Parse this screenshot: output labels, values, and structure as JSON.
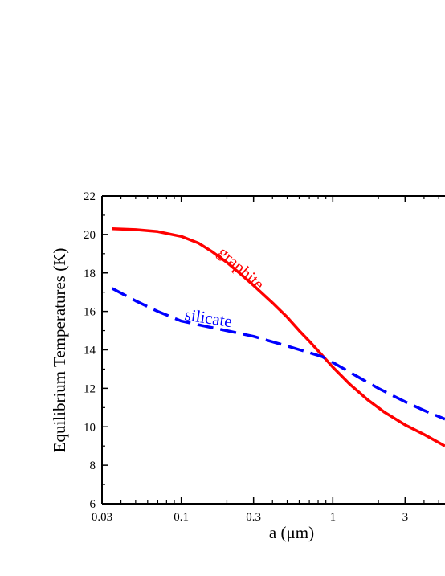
{
  "chart_data": {
    "type": "line",
    "xlabel": "a (μm)",
    "ylabel": "Equilibrium Temperatures (K)",
    "x_scale": "log",
    "xlim": [
      0.03,
      5.5
    ],
    "ylim": [
      6,
      22
    ],
    "x_ticks": [
      {
        "value": 0.03,
        "label": "0.03"
      },
      {
        "value": 0.1,
        "label": "0.1"
      },
      {
        "value": 0.3,
        "label": "0.3"
      },
      {
        "value": 1,
        "label": "1"
      },
      {
        "value": 3,
        "label": "3"
      }
    ],
    "y_ticks": [
      {
        "value": 6,
        "label": "6"
      },
      {
        "value": 8,
        "label": "8"
      },
      {
        "value": 10,
        "label": "10"
      },
      {
        "value": 12,
        "label": "12"
      },
      {
        "value": 14,
        "label": "14"
      },
      {
        "value": 16,
        "label": "16"
      },
      {
        "value": 18,
        "label": "18"
      },
      {
        "value": 20,
        "label": "20"
      },
      {
        "value": 22,
        "label": "22"
      }
    ],
    "grid": false,
    "series": [
      {
        "name": "graphite",
        "color": "#ff0000",
        "style": "solid",
        "x": [
          0.035,
          0.05,
          0.07,
          0.1,
          0.13,
          0.16,
          0.2,
          0.25,
          0.3,
          0.4,
          0.5,
          0.6,
          0.7,
          0.8,
          1.0,
          1.3,
          1.7,
          2.2,
          3.0,
          4.0,
          5.5
        ],
        "y": [
          20.3,
          20.25,
          20.15,
          19.9,
          19.55,
          19.1,
          18.55,
          17.9,
          17.35,
          16.45,
          15.7,
          15.0,
          14.45,
          13.95,
          13.1,
          12.2,
          11.4,
          10.75,
          10.1,
          9.6,
          9.0
        ]
      },
      {
        "name": "silicate",
        "color": "#0000ff",
        "style": "dashed",
        "x": [
          0.035,
          0.05,
          0.07,
          0.1,
          0.15,
          0.2,
          0.3,
          0.5,
          0.7,
          0.85,
          1.0,
          1.5,
          2.0,
          3.0,
          4.0,
          5.5
        ],
        "y": [
          17.2,
          16.55,
          16.0,
          15.5,
          15.2,
          15.0,
          14.7,
          14.2,
          13.85,
          13.65,
          13.35,
          12.55,
          12.0,
          11.3,
          10.85,
          10.4
        ]
      }
    ]
  }
}
